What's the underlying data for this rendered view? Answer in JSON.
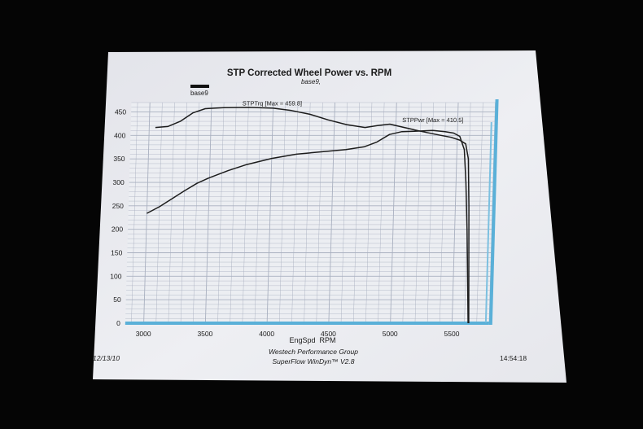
{
  "chart_data": {
    "type": "line",
    "title": "STP Corrected Wheel Power vs. RPM",
    "subtitle": "base9,",
    "legend": {
      "label": "base9",
      "placement": "top-left"
    },
    "xlabel": "EngSpd  RPM",
    "ylabel": "",
    "xlim": [
      2850,
      5800
    ],
    "ylim": [
      0,
      470
    ],
    "grid": true,
    "x_ticks": [
      3000,
      3500,
      4000,
      4500,
      5000,
      5500
    ],
    "y_ticks": [
      0,
      50,
      100,
      150,
      200,
      250,
      300,
      350,
      400,
      450
    ],
    "series": [
      {
        "name": "STPTrq",
        "annotation": "STPTrq [Max = 459.8]",
        "color": "#1c1c1c",
        "points": [
          [
            3050,
            417
          ],
          [
            3150,
            419
          ],
          [
            3250,
            430
          ],
          [
            3350,
            448
          ],
          [
            3450,
            457
          ],
          [
            3600,
            459
          ],
          [
            3800,
            459.8
          ],
          [
            4000,
            458
          ],
          [
            4150,
            453
          ],
          [
            4300,
            445
          ],
          [
            4450,
            433
          ],
          [
            4600,
            423
          ],
          [
            4750,
            417
          ],
          [
            4850,
            421
          ],
          [
            4950,
            424
          ],
          [
            5050,
            418
          ],
          [
            5200,
            409
          ],
          [
            5350,
            401
          ],
          [
            5450,
            396
          ],
          [
            5520,
            390
          ],
          [
            5570,
            382
          ],
          [
            5595,
            350
          ],
          [
            5610,
            250
          ],
          [
            5625,
            100
          ],
          [
            5635,
            0
          ]
        ]
      },
      {
        "name": "STPPwr",
        "annotation": "STPPwr [Max = 410.5]",
        "color": "#1c1c1c",
        "points": [
          [
            3000,
            234
          ],
          [
            3100,
            248
          ],
          [
            3200,
            265
          ],
          [
            3300,
            282
          ],
          [
            3400,
            298
          ],
          [
            3500,
            310
          ],
          [
            3650,
            325
          ],
          [
            3800,
            338
          ],
          [
            4000,
            351
          ],
          [
            4200,
            360
          ],
          [
            4400,
            365
          ],
          [
            4600,
            370
          ],
          [
            4750,
            376
          ],
          [
            4850,
            386
          ],
          [
            4950,
            402
          ],
          [
            5050,
            408
          ],
          [
            5150,
            409
          ],
          [
            5300,
            410.5
          ],
          [
            5400,
            408
          ],
          [
            5470,
            405
          ],
          [
            5520,
            398
          ],
          [
            5560,
            370
          ],
          [
            5580,
            300
          ],
          [
            5600,
            200
          ],
          [
            5615,
            100
          ],
          [
            5630,
            0
          ]
        ]
      }
    ]
  },
  "footer": {
    "date": "12/13/10",
    "company": "Westech Performance Group",
    "software": "SuperFlow WinDyn™ V2.8",
    "time": "14:54:18"
  },
  "colors": {
    "paper": "#e8e9ee",
    "grid": "#a9b0c0",
    "axis_accent": "#5ab0d8",
    "curve": "#1c1c1c"
  }
}
